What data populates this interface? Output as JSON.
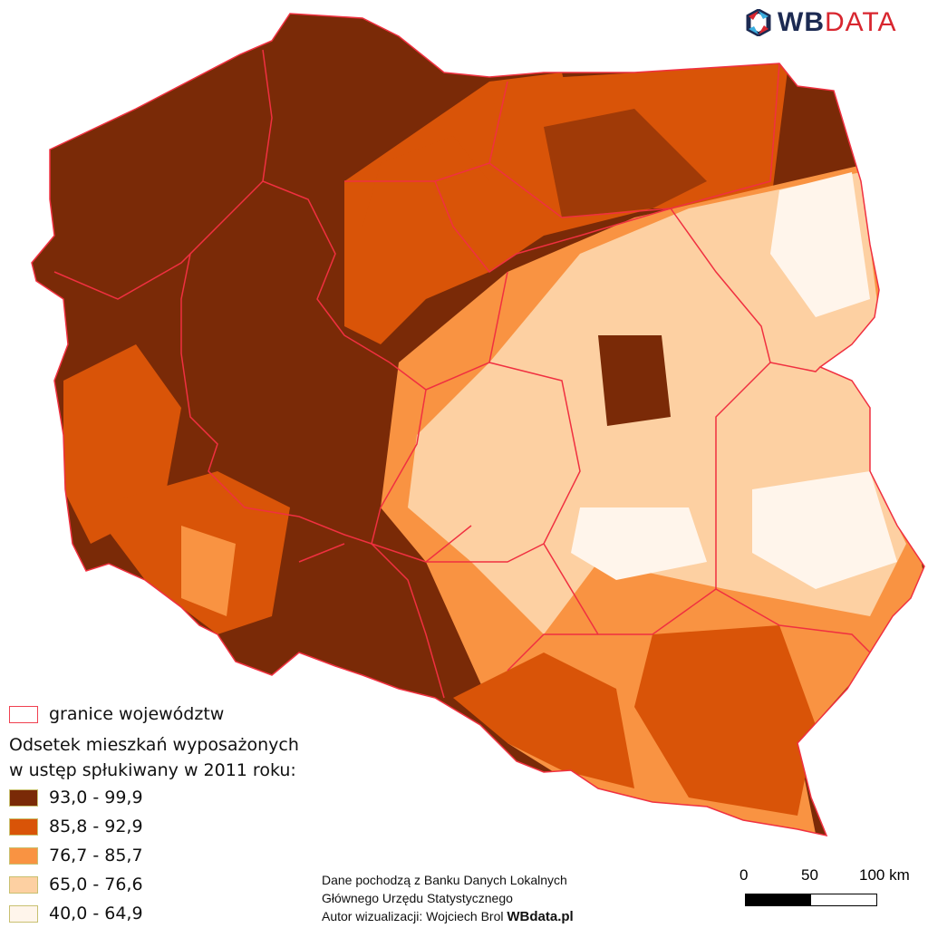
{
  "logo": {
    "part1": "WB",
    "part2": "DATA"
  },
  "legend": {
    "border_label": "granice województw",
    "border_color": "#f04050",
    "title_line1": "Odsetek mieszkań wyposażonych",
    "title_line2": "w ustęp spłukiwany w 2011 roku:",
    "classes": [
      {
        "label": "93,0 - 99,9",
        "color": "#7a2a07"
      },
      {
        "label": "85,8 - 92,9",
        "color": "#d95408"
      },
      {
        "label": "76,7 - 85,7",
        "color": "#f99342"
      },
      {
        "label": "65,0 - 76,6",
        "color": "#fdd0a2"
      },
      {
        "label": "40,0 - 64,9",
        "color": "#fff5eb"
      }
    ]
  },
  "credits": {
    "line1": "Dane pochodzą z Banku Danych Lokalnych",
    "line2": "Głównego Urzędu Statystycznego",
    "line3_prefix": "Autor wizualizacji: Wojciech Brol ",
    "line3_link": "WBdata.pl"
  },
  "scale_bar": {
    "tick0": "0",
    "tick1": "50",
    "tick2": "100 km"
  }
}
